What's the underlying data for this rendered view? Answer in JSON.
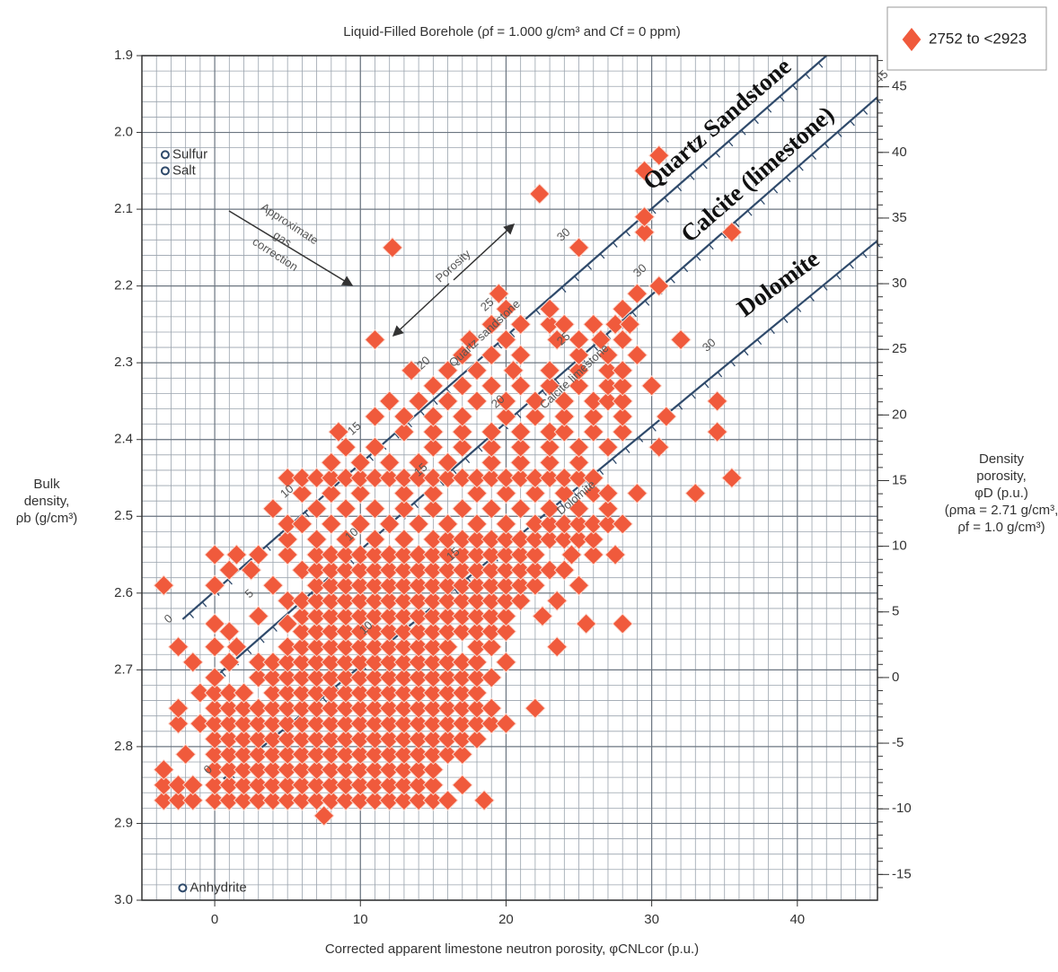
{
  "chart_data": {
    "type": "scatter",
    "title": "Liquid-Filled Borehole (ρf = 1.000 g/cm³ and Cf = 0 ppm)",
    "x_label": "Corrected apparent limestone neutron porosity, φCNLcor (p.u.)",
    "y_label": [
      "Bulk",
      "density,",
      "ρb (g/cm³)"
    ],
    "y2_label": [
      "Density",
      "porosity,",
      "φD (p.u.)",
      "(ρma = 2.71 g/cm³,",
      "ρf = 1.0 g/cm³)"
    ],
    "xlim": [
      -5,
      45.5
    ],
    "xticks": [
      0,
      10,
      20,
      30,
      40
    ],
    "ylim": [
      3.0,
      1.9
    ],
    "yticks": [
      1.9,
      {
        "value": 2.0,
        "label": "2.0"
      },
      2.1,
      2.2,
      2.3,
      2.4,
      2.5,
      2.6,
      2.7,
      2.8,
      2.9,
      {
        "value": 3.0,
        "label": "3.0"
      }
    ],
    "y2lim": [
      -16.96,
      47.37
    ],
    "y2ticks": [
      45,
      40,
      35,
      30,
      25,
      20,
      15,
      10,
      5,
      0,
      -5,
      -10,
      -15
    ],
    "grid": true,
    "legend": "top-right",
    "series": [
      {
        "name": "2752 to <2923",
        "color": "#f05a3c",
        "x": [
          7.5,
          -3.5,
          -2.5,
          -1.5,
          0,
          1,
          2,
          3,
          4,
          5,
          6,
          7,
          8,
          9,
          10,
          11,
          12,
          13,
          14,
          15,
          16,
          18.5,
          -3.5,
          -2.5,
          -1.5,
          0,
          1,
          2,
          3,
          4,
          5,
          6,
          7,
          8,
          9,
          10,
          11,
          12,
          13,
          14,
          15,
          17,
          -3.5,
          0,
          1,
          2,
          3,
          4,
          5,
          6,
          7,
          8,
          9,
          10,
          11,
          12,
          13,
          14,
          15,
          -2,
          0,
          1,
          2,
          3,
          4,
          5,
          6,
          7,
          8,
          9,
          10,
          11,
          12,
          13,
          14,
          15,
          16,
          17,
          0,
          1,
          2,
          3,
          4,
          5,
          6,
          7,
          8,
          9,
          10,
          11,
          12,
          13,
          14,
          15,
          16,
          17,
          18,
          -2.5,
          -1,
          0,
          1,
          2,
          3,
          4,
          5,
          6,
          7,
          8,
          9,
          10,
          11,
          12,
          13,
          14,
          15,
          16,
          17,
          18,
          19,
          20,
          -2.5,
          0,
          1,
          2,
          3,
          4,
          5,
          6,
          7,
          8,
          9,
          10,
          11,
          12,
          13,
          14,
          15,
          16,
          17,
          18,
          19,
          22,
          -1,
          0,
          1,
          2,
          4,
          5,
          6,
          7,
          8,
          9,
          10,
          11,
          12,
          13,
          14,
          15,
          16,
          17,
          18,
          0,
          3,
          4,
          5,
          6,
          7,
          8,
          9,
          10,
          11,
          12,
          13,
          14,
          15,
          16,
          17,
          18,
          19,
          -1.5,
          1,
          3,
          4,
          5,
          6,
          7,
          8,
          9,
          10,
          11,
          12,
          13,
          14,
          15,
          16,
          17,
          18,
          20,
          -2.5,
          0,
          1.5,
          5,
          6,
          7,
          8,
          9,
          10,
          11,
          12,
          13,
          14,
          15,
          16,
          18,
          19,
          23.5,
          1,
          6,
          7,
          8,
          9,
          10,
          11,
          12,
          13,
          14,
          15,
          16,
          17,
          18,
          19,
          20,
          0,
          5,
          25.5,
          28,
          3,
          6,
          7,
          8,
          9,
          10,
          11,
          12,
          13,
          14,
          15,
          16,
          17,
          18,
          19,
          20,
          22.5,
          5,
          6,
          7,
          8,
          9,
          10,
          11,
          12,
          13,
          14,
          15,
          16,
          17,
          18,
          19,
          20,
          21,
          23.5,
          -3.5,
          0,
          4,
          7,
          8,
          9,
          10,
          11,
          12,
          13,
          14,
          15,
          16,
          17,
          18,
          19,
          20,
          21,
          22,
          25,
          1,
          2.5,
          6,
          7,
          8,
          9,
          10,
          11,
          12,
          13,
          14,
          15,
          16,
          17,
          18,
          19,
          20,
          21,
          22,
          23,
          24,
          0,
          1.5,
          3,
          5,
          7,
          8,
          9,
          10,
          11,
          12,
          13,
          14,
          15,
          16,
          17,
          18,
          19,
          20,
          21,
          22,
          24.5,
          26,
          27.5,
          5,
          7,
          9,
          11,
          13,
          15,
          16,
          17,
          18,
          19,
          20,
          21,
          22,
          23,
          24,
          25,
          26,
          5,
          6,
          8,
          10,
          12,
          14,
          16,
          18,
          20,
          22,
          23,
          24,
          25,
          26,
          27,
          28,
          4,
          7,
          9,
          11,
          13,
          15,
          17,
          19,
          21,
          23,
          25,
          27,
          6,
          8,
          10,
          13,
          15,
          18,
          20,
          22,
          24,
          26,
          27,
          29,
          33,
          5,
          6,
          7,
          8,
          9,
          10,
          11,
          12,
          13,
          14,
          15,
          16,
          17,
          18,
          19,
          20,
          21,
          22,
          23,
          24,
          25,
          26,
          35.5,
          8,
          10,
          12,
          14,
          16,
          19,
          21,
          23,
          25,
          9,
          11,
          15,
          17,
          19,
          21,
          23,
          25,
          27,
          30.5,
          8.5,
          13,
          15,
          17,
          19,
          21,
          23,
          24,
          26,
          28,
          34.5,
          11,
          13,
          15,
          17,
          20,
          22,
          24,
          26,
          28,
          31,
          12,
          14,
          16,
          18,
          20,
          22,
          24,
          26,
          27,
          28,
          34.5,
          15,
          17,
          19,
          21,
          23,
          25,
          27,
          28,
          30,
          13.5,
          16,
          18,
          20.5,
          23,
          25,
          27,
          28,
          17,
          19,
          21,
          25,
          27,
          29,
          11,
          17.5,
          20,
          23.5,
          25,
          26.5,
          28,
          32,
          19,
          21,
          23,
          24,
          26,
          27.5,
          28.5,
          20,
          23,
          28,
          19.5,
          29,
          30.5,
          12.2,
          25,
          29.5,
          35.5,
          29.5,
          22.3,
          29.5,
          30.5
        ],
        "y": [
          2.89,
          2.87,
          2.87,
          2.87,
          2.87,
          2.87,
          2.87,
          2.87,
          2.87,
          2.87,
          2.87,
          2.87,
          2.87,
          2.87,
          2.87,
          2.87,
          2.87,
          2.87,
          2.87,
          2.87,
          2.87,
          2.87,
          2.85,
          2.85,
          2.85,
          2.85,
          2.85,
          2.85,
          2.85,
          2.85,
          2.85,
          2.85,
          2.85,
          2.85,
          2.85,
          2.85,
          2.85,
          2.85,
          2.85,
          2.85,
          2.85,
          2.85,
          2.83,
          2.83,
          2.83,
          2.83,
          2.83,
          2.83,
          2.83,
          2.83,
          2.83,
          2.83,
          2.83,
          2.83,
          2.83,
          2.83,
          2.83,
          2.83,
          2.83,
          2.81,
          2.81,
          2.81,
          2.81,
          2.81,
          2.81,
          2.81,
          2.81,
          2.81,
          2.81,
          2.81,
          2.81,
          2.81,
          2.81,
          2.81,
          2.81,
          2.81,
          2.81,
          2.81,
          2.79,
          2.79,
          2.79,
          2.79,
          2.79,
          2.79,
          2.79,
          2.79,
          2.79,
          2.79,
          2.79,
          2.79,
          2.79,
          2.79,
          2.79,
          2.79,
          2.79,
          2.79,
          2.79,
          2.77,
          2.77,
          2.77,
          2.77,
          2.77,
          2.77,
          2.77,
          2.77,
          2.77,
          2.77,
          2.77,
          2.77,
          2.77,
          2.77,
          2.77,
          2.77,
          2.77,
          2.77,
          2.77,
          2.77,
          2.77,
          2.77,
          2.77,
          2.75,
          2.75,
          2.75,
          2.75,
          2.75,
          2.75,
          2.75,
          2.75,
          2.75,
          2.75,
          2.75,
          2.75,
          2.75,
          2.75,
          2.75,
          2.75,
          2.75,
          2.75,
          2.75,
          2.75,
          2.75,
          2.75,
          2.73,
          2.73,
          2.73,
          2.73,
          2.73,
          2.73,
          2.73,
          2.73,
          2.73,
          2.73,
          2.73,
          2.73,
          2.73,
          2.73,
          2.73,
          2.73,
          2.73,
          2.73,
          2.73,
          2.71,
          2.71,
          2.71,
          2.71,
          2.71,
          2.71,
          2.71,
          2.71,
          2.71,
          2.71,
          2.71,
          2.71,
          2.71,
          2.71,
          2.71,
          2.71,
          2.71,
          2.71,
          2.69,
          2.69,
          2.69,
          2.69,
          2.69,
          2.69,
          2.69,
          2.69,
          2.69,
          2.69,
          2.69,
          2.69,
          2.69,
          2.69,
          2.69,
          2.69,
          2.69,
          2.69,
          2.69,
          2.67,
          2.67,
          2.67,
          2.67,
          2.67,
          2.67,
          2.67,
          2.67,
          2.67,
          2.67,
          2.67,
          2.67,
          2.67,
          2.67,
          2.67,
          2.67,
          2.67,
          2.67,
          2.65,
          2.65,
          2.65,
          2.65,
          2.65,
          2.65,
          2.65,
          2.65,
          2.65,
          2.65,
          2.65,
          2.65,
          2.65,
          2.65,
          2.65,
          2.65,
          2.64,
          2.64,
          2.64,
          2.64,
          2.63,
          2.63,
          2.63,
          2.63,
          2.63,
          2.63,
          2.63,
          2.63,
          2.63,
          2.63,
          2.63,
          2.63,
          2.63,
          2.63,
          2.63,
          2.63,
          2.63,
          2.61,
          2.61,
          2.61,
          2.61,
          2.61,
          2.61,
          2.61,
          2.61,
          2.61,
          2.61,
          2.61,
          2.61,
          2.61,
          2.61,
          2.61,
          2.61,
          2.61,
          2.61,
          2.59,
          2.59,
          2.59,
          2.59,
          2.59,
          2.59,
          2.59,
          2.59,
          2.59,
          2.59,
          2.59,
          2.59,
          2.59,
          2.59,
          2.59,
          2.59,
          2.59,
          2.59,
          2.59,
          2.59,
          2.57,
          2.57,
          2.57,
          2.57,
          2.57,
          2.57,
          2.57,
          2.57,
          2.57,
          2.57,
          2.57,
          2.57,
          2.57,
          2.57,
          2.57,
          2.57,
          2.57,
          2.57,
          2.57,
          2.57,
          2.57,
          2.55,
          2.55,
          2.55,
          2.55,
          2.55,
          2.55,
          2.55,
          2.55,
          2.55,
          2.55,
          2.55,
          2.55,
          2.55,
          2.55,
          2.55,
          2.55,
          2.55,
          2.55,
          2.55,
          2.55,
          2.55,
          2.55,
          2.55,
          2.53,
          2.53,
          2.53,
          2.53,
          2.53,
          2.53,
          2.53,
          2.53,
          2.53,
          2.53,
          2.53,
          2.53,
          2.53,
          2.53,
          2.53,
          2.53,
          2.53,
          2.51,
          2.51,
          2.51,
          2.51,
          2.51,
          2.51,
          2.51,
          2.51,
          2.51,
          2.51,
          2.51,
          2.51,
          2.51,
          2.51,
          2.51,
          2.51,
          2.49,
          2.49,
          2.49,
          2.49,
          2.49,
          2.49,
          2.49,
          2.49,
          2.49,
          2.49,
          2.49,
          2.49,
          2.47,
          2.47,
          2.47,
          2.47,
          2.47,
          2.47,
          2.47,
          2.47,
          2.47,
          2.47,
          2.47,
          2.47,
          2.47,
          2.45,
          2.45,
          2.45,
          2.45,
          2.45,
          2.45,
          2.45,
          2.45,
          2.45,
          2.45,
          2.45,
          2.45,
          2.45,
          2.45,
          2.45,
          2.45,
          2.45,
          2.45,
          2.45,
          2.45,
          2.45,
          2.45,
          2.45,
          2.43,
          2.43,
          2.43,
          2.43,
          2.43,
          2.43,
          2.43,
          2.43,
          2.43,
          2.41,
          2.41,
          2.41,
          2.41,
          2.41,
          2.41,
          2.41,
          2.41,
          2.41,
          2.41,
          2.39,
          2.39,
          2.39,
          2.39,
          2.39,
          2.39,
          2.39,
          2.39,
          2.39,
          2.39,
          2.39,
          2.37,
          2.37,
          2.37,
          2.37,
          2.37,
          2.37,
          2.37,
          2.37,
          2.37,
          2.37,
          2.35,
          2.35,
          2.35,
          2.35,
          2.35,
          2.35,
          2.35,
          2.35,
          2.35,
          2.35,
          2.35,
          2.33,
          2.33,
          2.33,
          2.33,
          2.33,
          2.33,
          2.33,
          2.33,
          2.33,
          2.31,
          2.31,
          2.31,
          2.31,
          2.31,
          2.31,
          2.31,
          2.31,
          2.29,
          2.29,
          2.29,
          2.29,
          2.29,
          2.29,
          2.27,
          2.27,
          2.27,
          2.27,
          2.27,
          2.27,
          2.27,
          2.27,
          2.25,
          2.25,
          2.25,
          2.25,
          2.25,
          2.25,
          2.25,
          2.23,
          2.23,
          2.23,
          2.21,
          2.21,
          2.2,
          2.15,
          2.15,
          2.13,
          2.13,
          2.11,
          2.08,
          2.05,
          2.03
        ]
      }
    ],
    "lines": [
      {
        "name": "Quartz Sandstone",
        "color": "#2f4a6b",
        "x": [
          -2.2,
          42.0
        ],
        "y": [
          2.634,
          1.9
        ],
        "porosity_labels": [
          0,
          10,
          15,
          20,
          25,
          30
        ]
      },
      {
        "name": "Calcite (limestone)",
        "color": "#2f4a6b",
        "x": [
          0,
          45.5
        ],
        "y": [
          2.71,
          1.954
        ],
        "porosity_labels": [
          5,
          10,
          15,
          20,
          25,
          30,
          45
        ]
      },
      {
        "name": "Dolomite",
        "color": "#2f4a6b",
        "x": [
          0.6,
          45.5
        ],
        "y": [
          2.842,
          2.141
        ],
        "porosity_labels": [
          0,
          10,
          15,
          30
        ]
      }
    ],
    "minerals": [
      {
        "name": "Sulfur",
        "x": -3.4,
        "y": 2.029
      },
      {
        "name": "Salt",
        "x": -3.4,
        "y": 2.05
      },
      {
        "name": "Anhydrite",
        "x": -2.2,
        "y": 2.984
      }
    ],
    "gas_correction_label": [
      "Approximate",
      "gas",
      "correction"
    ],
    "annotations": [
      "Porosity",
      "Quartz sandstone",
      "Calcite limestone",
      "Dolomite"
    ]
  }
}
